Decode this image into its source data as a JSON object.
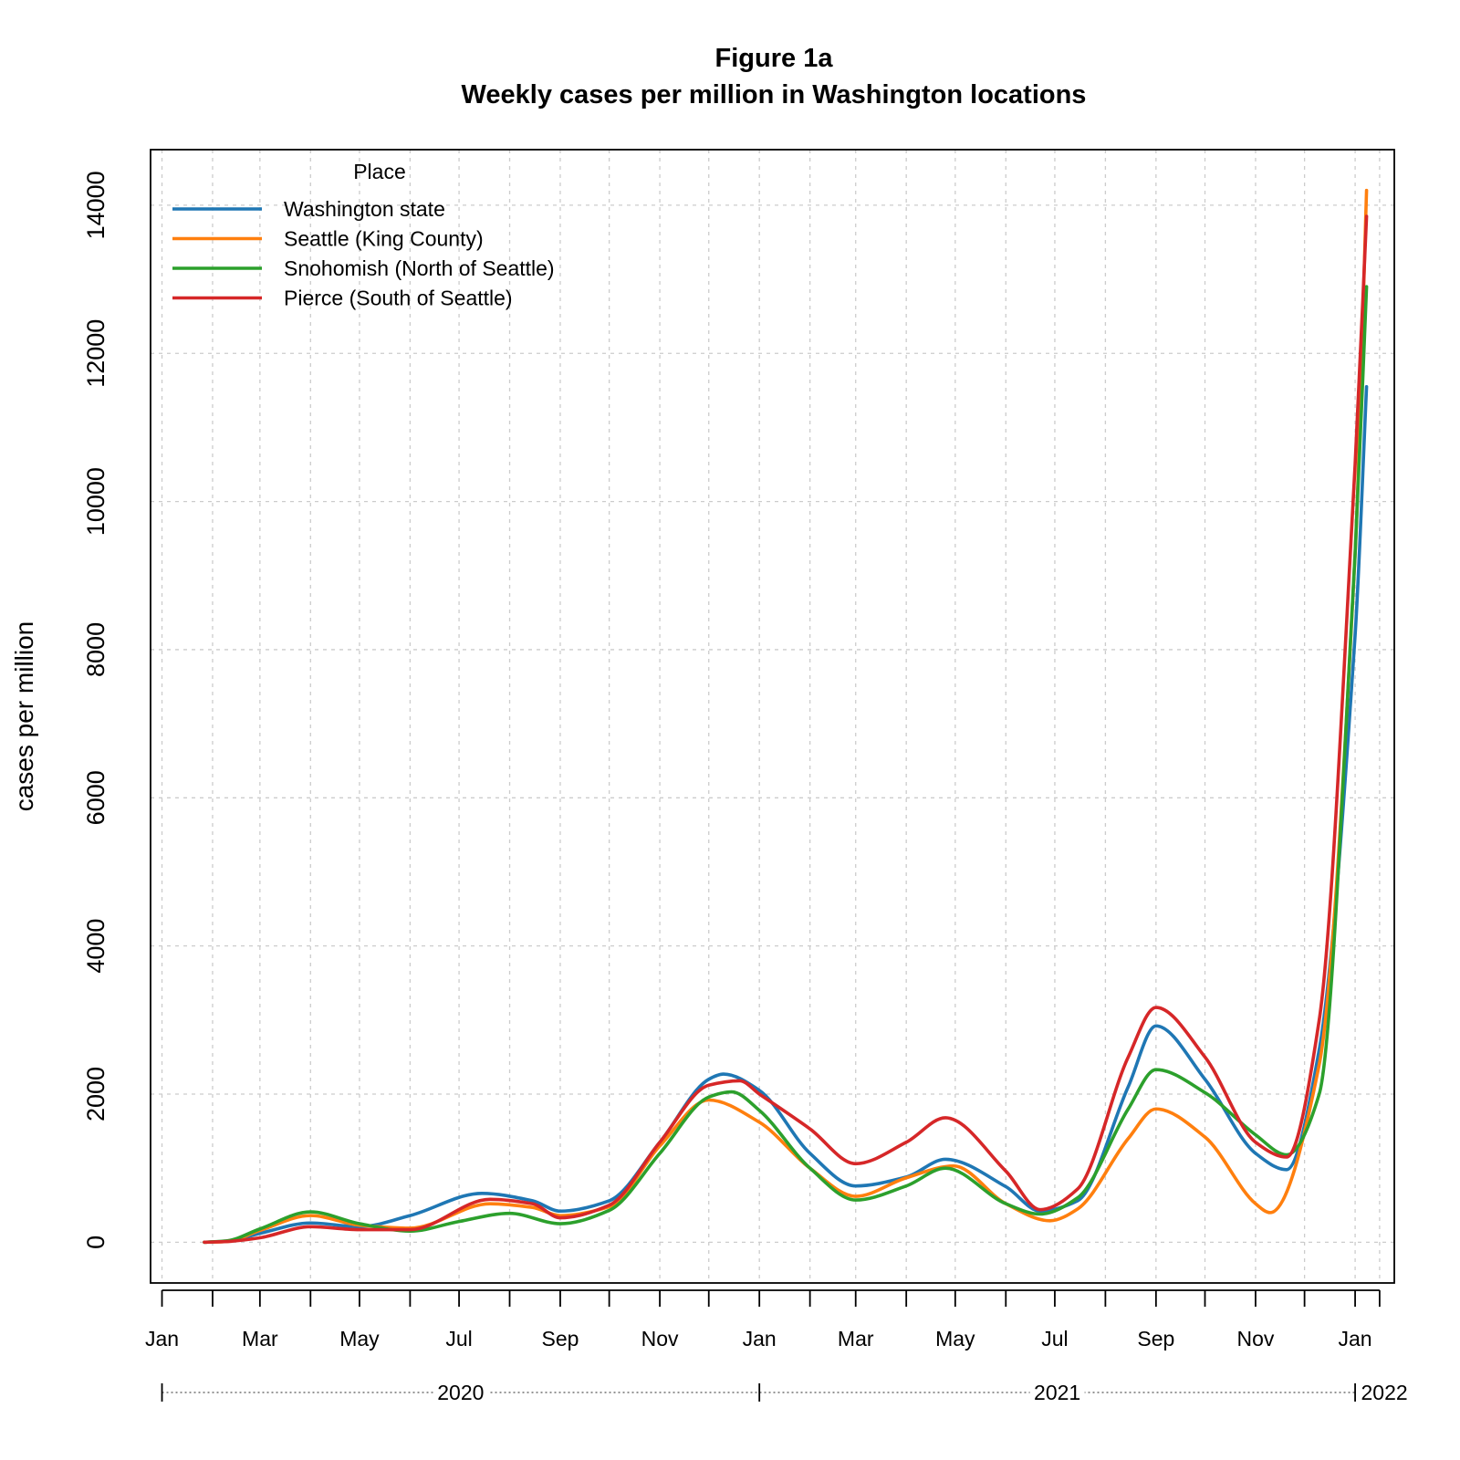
{
  "chart_data": {
    "type": "line",
    "title": "Figure 1a",
    "subtitle": "Weekly cases per million in Washington locations",
    "xlabel": "",
    "ylabel": "cases per million",
    "ylim": [
      -550,
      14750
    ],
    "xlim": [
      "2019-12-25",
      "2022-01-25"
    ],
    "grid": true,
    "legend_title": "Place",
    "legend_position": "top-left",
    "y_ticks": [
      0,
      2000,
      4000,
      6000,
      8000,
      10000,
      12000,
      14000
    ],
    "x_month_ticks": [
      {
        "date": "2020-01-01",
        "label": "Jan"
      },
      {
        "date": "2020-03-01",
        "label": "Mar"
      },
      {
        "date": "2020-05-01",
        "label": "May"
      },
      {
        "date": "2020-07-01",
        "label": "Jul"
      },
      {
        "date": "2020-09-01",
        "label": "Sep"
      },
      {
        "date": "2020-11-01",
        "label": "Nov"
      },
      {
        "date": "2021-01-01",
        "label": "Jan"
      },
      {
        "date": "2021-03-01",
        "label": "Mar"
      },
      {
        "date": "2021-05-01",
        "label": "May"
      },
      {
        "date": "2021-07-01",
        "label": "Jul"
      },
      {
        "date": "2021-09-01",
        "label": "Sep"
      },
      {
        "date": "2021-11-01",
        "label": "Nov"
      },
      {
        "date": "2022-01-01",
        "label": "Jan"
      }
    ],
    "x_minor_ticks": [
      "2020-02-01",
      "2020-04-01",
      "2020-06-01",
      "2020-08-01",
      "2020-10-01",
      "2020-12-01",
      "2021-02-01",
      "2021-04-01",
      "2021-06-01",
      "2021-08-01",
      "2021-10-01",
      "2021-12-01",
      "2022-01-16"
    ],
    "x_year_labels": [
      {
        "date": "2020-01-01",
        "label": "2020"
      },
      {
        "date": "2021-01-01",
        "label": "2021"
      },
      {
        "date": "2022-01-01",
        "label": "2022"
      }
    ],
    "series": [
      {
        "name": "Washington state",
        "color": "#1f77b4",
        "points": [
          [
            "2020-01-27",
            0
          ],
          [
            "2020-02-10",
            15
          ],
          [
            "2020-03-01",
            120
          ],
          [
            "2020-04-01",
            260
          ],
          [
            "2020-05-01",
            210
          ],
          [
            "2020-06-01",
            360
          ],
          [
            "2020-07-15",
            660
          ],
          [
            "2020-08-15",
            560
          ],
          [
            "2020-09-01",
            420
          ],
          [
            "2020-10-01",
            560
          ],
          [
            "2020-11-01",
            1350
          ],
          [
            "2020-12-01",
            2200
          ],
          [
            "2020-12-10",
            2270
          ],
          [
            "2021-01-01",
            2050
          ],
          [
            "2021-02-01",
            1200
          ],
          [
            "2021-03-01",
            760
          ],
          [
            "2021-04-01",
            880
          ],
          [
            "2021-04-25",
            1120
          ],
          [
            "2021-06-01",
            750
          ],
          [
            "2021-06-22",
            420
          ],
          [
            "2021-07-15",
            560
          ],
          [
            "2021-08-15",
            2100
          ],
          [
            "2021-09-01",
            2920
          ],
          [
            "2021-10-01",
            2200
          ],
          [
            "2021-11-01",
            1200
          ],
          [
            "2021-11-20",
            980
          ],
          [
            "2021-12-10",
            2600
          ],
          [
            "2022-01-01",
            8200
          ],
          [
            "2022-01-08",
            11550
          ]
        ]
      },
      {
        "name": "Seattle (King County)",
        "color": "#ff7f0e",
        "points": [
          [
            "2020-01-27",
            0
          ],
          [
            "2020-02-10",
            10
          ],
          [
            "2020-03-01",
            160
          ],
          [
            "2020-04-01",
            360
          ],
          [
            "2020-05-01",
            230
          ],
          [
            "2020-06-01",
            190
          ],
          [
            "2020-07-20",
            520
          ],
          [
            "2020-08-15",
            470
          ],
          [
            "2020-09-01",
            360
          ],
          [
            "2020-10-01",
            480
          ],
          [
            "2020-11-01",
            1300
          ],
          [
            "2020-12-01",
            1920
          ],
          [
            "2021-01-01",
            1620
          ],
          [
            "2021-02-01",
            1000
          ],
          [
            "2021-03-01",
            620
          ],
          [
            "2021-04-01",
            870
          ],
          [
            "2021-04-30",
            1030
          ],
          [
            "2021-06-01",
            520
          ],
          [
            "2021-06-28",
            290
          ],
          [
            "2021-07-15",
            450
          ],
          [
            "2021-08-15",
            1400
          ],
          [
            "2021-09-01",
            1800
          ],
          [
            "2021-10-01",
            1420
          ],
          [
            "2021-11-01",
            520
          ],
          [
            "2021-11-10",
            400
          ],
          [
            "2021-12-10",
            2400
          ],
          [
            "2022-01-01",
            9300
          ],
          [
            "2022-01-08",
            14200
          ]
        ]
      },
      {
        "name": "Snohomish (North of Seattle)",
        "color": "#2ca02c",
        "points": [
          [
            "2020-01-27",
            0
          ],
          [
            "2020-02-10",
            20
          ],
          [
            "2020-03-01",
            180
          ],
          [
            "2020-04-01",
            410
          ],
          [
            "2020-05-01",
            250
          ],
          [
            "2020-06-01",
            150
          ],
          [
            "2020-07-01",
            280
          ],
          [
            "2020-08-01",
            390
          ],
          [
            "2020-09-01",
            250
          ],
          [
            "2020-10-01",
            430
          ],
          [
            "2020-11-01",
            1200
          ],
          [
            "2020-12-01",
            1960
          ],
          [
            "2020-12-15",
            2030
          ],
          [
            "2021-01-01",
            1780
          ],
          [
            "2021-02-01",
            1000
          ],
          [
            "2021-03-01",
            570
          ],
          [
            "2021-04-01",
            760
          ],
          [
            "2021-04-25",
            1000
          ],
          [
            "2021-06-01",
            520
          ],
          [
            "2021-06-22",
            380
          ],
          [
            "2021-07-15",
            600
          ],
          [
            "2021-08-15",
            1800
          ],
          [
            "2021-09-01",
            2330
          ],
          [
            "2021-10-01",
            2020
          ],
          [
            "2021-11-01",
            1450
          ],
          [
            "2021-11-20",
            1180
          ],
          [
            "2021-12-10",
            2000
          ],
          [
            "2022-01-01",
            9300
          ],
          [
            "2022-01-08",
            12900
          ]
        ]
      },
      {
        "name": "Pierce (South of Seattle)",
        "color": "#d62728",
        "points": [
          [
            "2020-01-27",
            0
          ],
          [
            "2020-02-10",
            10
          ],
          [
            "2020-03-01",
            60
          ],
          [
            "2020-04-01",
            210
          ],
          [
            "2020-05-01",
            170
          ],
          [
            "2020-06-01",
            170
          ],
          [
            "2020-07-20",
            580
          ],
          [
            "2020-08-15",
            520
          ],
          [
            "2020-09-01",
            330
          ],
          [
            "2020-10-01",
            500
          ],
          [
            "2020-11-01",
            1350
          ],
          [
            "2020-12-01",
            2120
          ],
          [
            "2020-12-20",
            2180
          ],
          [
            "2021-01-01",
            2000
          ],
          [
            "2021-02-01",
            1530
          ],
          [
            "2021-03-01",
            1060
          ],
          [
            "2021-04-01",
            1350
          ],
          [
            "2021-04-25",
            1680
          ],
          [
            "2021-06-01",
            960
          ],
          [
            "2021-06-22",
            440
          ],
          [
            "2021-07-15",
            720
          ],
          [
            "2021-08-15",
            2500
          ],
          [
            "2021-09-01",
            3170
          ],
          [
            "2021-10-01",
            2500
          ],
          [
            "2021-11-01",
            1350
          ],
          [
            "2021-11-20",
            1150
          ],
          [
            "2021-12-10",
            3000
          ],
          [
            "2022-01-01",
            10500
          ],
          [
            "2022-01-08",
            13850
          ]
        ]
      }
    ]
  }
}
